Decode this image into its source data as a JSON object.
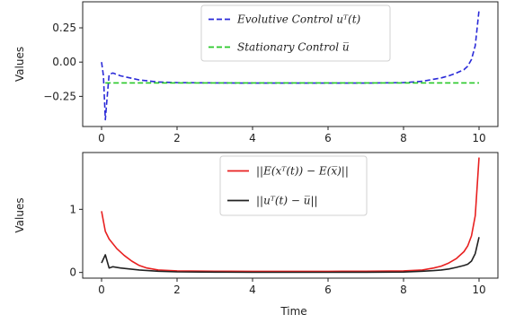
{
  "chart_data": [
    {
      "type": "line",
      "xlabel": "",
      "ylabel": "Values",
      "xlim": [
        -0.5,
        10.5
      ],
      "ylim": [
        -0.47,
        0.44
      ],
      "xticks": [
        0,
        2,
        4,
        6,
        8,
        10
      ],
      "xtick_labels": [
        "0",
        "2",
        "4",
        "6",
        "8",
        "10"
      ],
      "yticks": [
        0.25,
        0.0,
        -0.25
      ],
      "ytick_labels": [
        "0.25",
        "0.00",
        "−0.25"
      ],
      "legend_position": "top-center",
      "grid": false,
      "series": [
        {
          "name": "Evolutive Control u^T(t)",
          "legend_label": "Evolutive Control uᵀ(t)",
          "color": "#2a2ad8",
          "style": "dashed",
          "x": [
            0,
            0.05,
            0.1,
            0.15,
            0.2,
            0.3,
            0.5,
            1,
            1.5,
            2,
            3,
            4,
            5,
            6,
            7,
            8,
            8.5,
            8.8,
            9,
            9.2,
            9.4,
            9.6,
            9.7,
            9.8,
            9.9,
            10
          ],
          "y": [
            0.0,
            -0.1,
            -0.42,
            -0.25,
            -0.09,
            -0.08,
            -0.1,
            -0.13,
            -0.145,
            -0.15,
            -0.152,
            -0.153,
            -0.153,
            -0.153,
            -0.153,
            -0.15,
            -0.14,
            -0.125,
            -0.115,
            -0.1,
            -0.08,
            -0.055,
            -0.03,
            0.02,
            0.12,
            0.38
          ]
        },
        {
          "name": "Stationary Control u̅",
          "legend_label": "Stationary Control u̅",
          "color": "#28c828",
          "style": "dashed",
          "x": [
            0.1,
            10
          ],
          "y": [
            -0.152,
            -0.152
          ]
        }
      ]
    },
    {
      "type": "line",
      "xlabel": "Time",
      "ylabel": "Values",
      "xlim": [
        -0.5,
        10.5
      ],
      "ylim": [
        -0.09,
        1.9
      ],
      "xticks": [
        0,
        2,
        4,
        6,
        8,
        10
      ],
      "xtick_labels": [
        "0",
        "2",
        "4",
        "6",
        "8",
        "10"
      ],
      "yticks": [
        0,
        1
      ],
      "ytick_labels": [
        "0",
        "1"
      ],
      "legend_position": "top-center",
      "grid": false,
      "series": [
        {
          "name": "||E(x^T(t)) - E(x̅)||",
          "legend_label": "||E(xᵀ(t)) − E(x̅)||",
          "color": "#e82020",
          "style": "solid",
          "x": [
            0,
            0.1,
            0.2,
            0.4,
            0.6,
            0.8,
            1,
            1.2,
            1.5,
            2,
            3,
            4,
            5,
            6,
            7,
            8,
            8.5,
            8.8,
            9,
            9.2,
            9.4,
            9.6,
            9.7,
            9.8,
            9.9,
            10
          ],
          "y": [
            0.97,
            0.65,
            0.53,
            0.38,
            0.27,
            0.18,
            0.11,
            0.07,
            0.04,
            0.025,
            0.02,
            0.018,
            0.018,
            0.018,
            0.02,
            0.025,
            0.04,
            0.07,
            0.1,
            0.15,
            0.22,
            0.33,
            0.42,
            0.58,
            0.9,
            1.82
          ]
        },
        {
          "name": "||u^T(t) - u̅||",
          "legend_label": "||uᵀ(t) − u̅||",
          "color": "#222222",
          "style": "solid",
          "x": [
            0,
            0.1,
            0.2,
            0.3,
            0.5,
            1,
            1.5,
            2,
            3,
            4,
            5,
            6,
            7,
            8,
            8.5,
            8.8,
            9,
            9.2,
            9.4,
            9.6,
            9.7,
            9.8,
            9.9,
            10
          ],
          "y": [
            0.15,
            0.28,
            0.07,
            0.09,
            0.07,
            0.04,
            0.02,
            0.01,
            0.005,
            0.003,
            0.003,
            0.003,
            0.004,
            0.007,
            0.02,
            0.03,
            0.04,
            0.055,
            0.08,
            0.11,
            0.13,
            0.18,
            0.3,
            0.56
          ]
        }
      ]
    }
  ]
}
